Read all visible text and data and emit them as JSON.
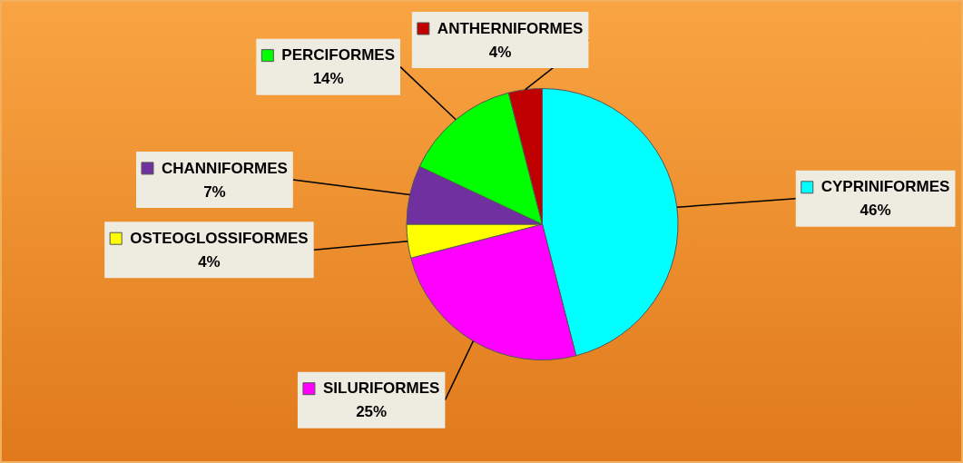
{
  "chart_data": {
    "type": "pie",
    "categories": [
      "CYPRINIFORMES",
      "SILURIFORMES",
      "OSTEOGLOSSIFORMES",
      "CHANNIFORMES",
      "PERCIFORMES",
      "ANTHERNIFORMES"
    ],
    "values": [
      46,
      25,
      4,
      7,
      14,
      4
    ],
    "colors": [
      "#00ffff",
      "#ff00ff",
      "#ffff00",
      "#7030a0",
      "#00ff00",
      "#c00000"
    ],
    "value_labels": [
      "46%",
      "25%",
      "4%",
      "7%",
      "14%",
      "4%"
    ],
    "legend": true
  }
}
